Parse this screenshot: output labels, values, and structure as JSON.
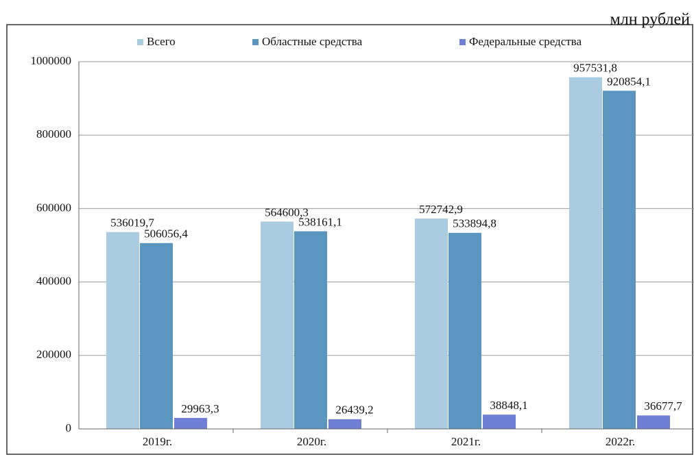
{
  "chart_data": {
    "type": "bar",
    "annotation": "млн рублей",
    "categories": [
      "2019г.",
      "2020г.",
      "2021г.",
      "2022г."
    ],
    "series": [
      {
        "name": "Всего",
        "color": "#a9cce0",
        "values": [
          536019.7,
          564600.3,
          572742.9,
          957531.8
        ],
        "value_labels": [
          "536019,7",
          "564600,3",
          "572742,9",
          "957531,8"
        ]
      },
      {
        "name": "Областные средства",
        "color": "#5b96c0",
        "values": [
          506056.4,
          538161.1,
          533894.8,
          920854.1
        ],
        "value_labels": [
          "506056,4",
          "538161,1",
          "533894,8",
          "920854,1"
        ]
      },
      {
        "name": "Федеральные средства",
        "color": "#6f7fd6",
        "values": [
          29963.3,
          26439.2,
          38848.1,
          36677.7
        ],
        "value_labels": [
          "29963,3",
          "26439,2",
          "38848,1",
          "36677,7"
        ]
      }
    ],
    "ylim": [
      0,
      1000000
    ],
    "yticks": [
      0,
      200000,
      400000,
      600000,
      800000,
      1000000
    ],
    "grid": true,
    "legend": "top"
  }
}
